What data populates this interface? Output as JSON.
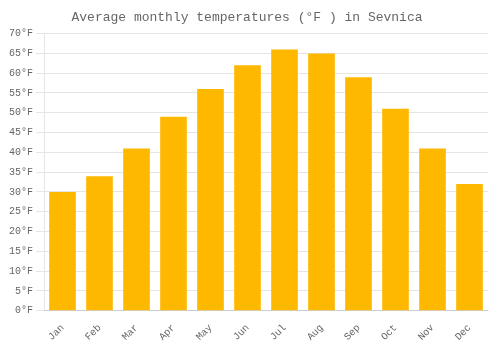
{
  "chart_data": {
    "type": "bar",
    "title": "Average monthly temperatures (°F ) in Sevnica",
    "categories": [
      "Jan",
      "Feb",
      "Mar",
      "Apr",
      "May",
      "Jun",
      "Jul",
      "Aug",
      "Sep",
      "Oct",
      "Nov",
      "Dec"
    ],
    "values": [
      30,
      34,
      41,
      49,
      56,
      62,
      66,
      65,
      59,
      51,
      41,
      32
    ],
    "color": "#FFB800",
    "ylim": [
      0,
      70
    ],
    "yticks": [
      {
        "value": 0,
        "label": "0°F"
      },
      {
        "value": 5,
        "label": "5°F"
      },
      {
        "value": 10,
        "label": "10°F"
      },
      {
        "value": 15,
        "label": "15°F"
      },
      {
        "value": 20,
        "label": "20°F"
      },
      {
        "value": 25,
        "label": "25°F"
      },
      {
        "value": 30,
        "label": "30°F"
      },
      {
        "value": 35,
        "label": "35°F"
      },
      {
        "value": 40,
        "label": "40°F"
      },
      {
        "value": 45,
        "label": "45°F"
      },
      {
        "value": 50,
        "label": "50°F"
      },
      {
        "value": 55,
        "label": "55°F"
      },
      {
        "value": 60,
        "label": "60°F"
      },
      {
        "value": 65,
        "label": "65°F"
      },
      {
        "value": 70,
        "label": "70°F"
      }
    ],
    "grid": true
  }
}
